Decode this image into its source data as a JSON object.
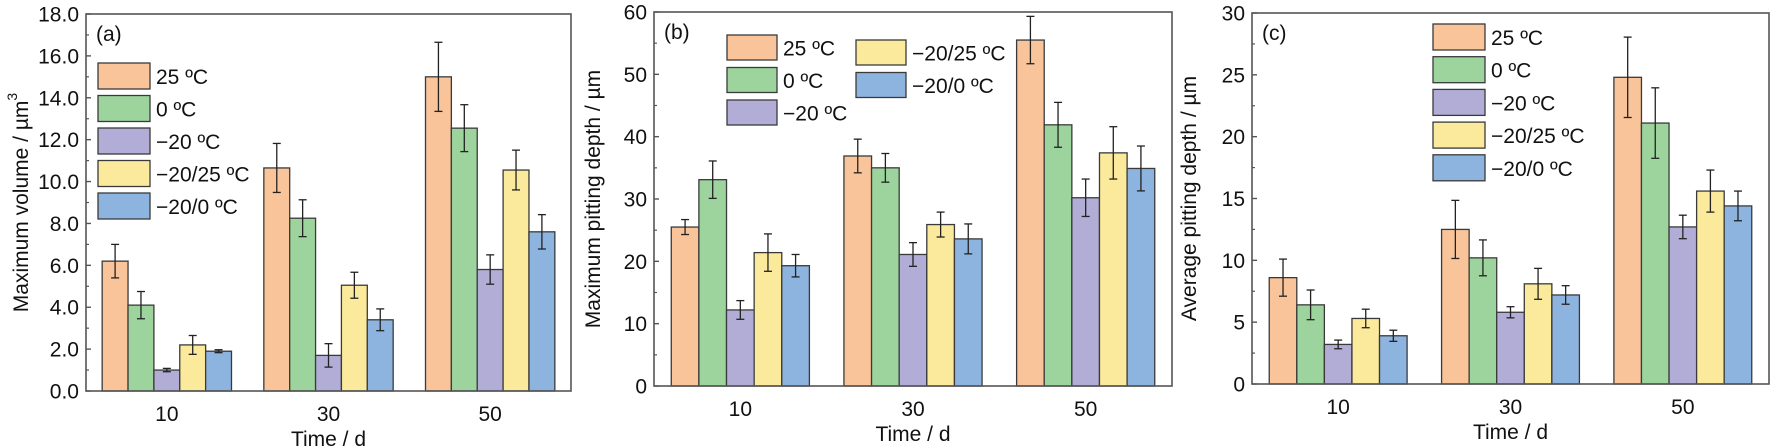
{
  "chart_data": [
    {
      "type": "bar",
      "panel_label": "(a)",
      "title": "",
      "xlabel": "Time / d",
      "ylabel": "Maximum volume / µm",
      "ylabel_superscript": "3",
      "categories": [
        "10",
        "30",
        "50"
      ],
      "ylim": [
        0,
        18
      ],
      "yticks": [
        0,
        2,
        4,
        6,
        8,
        10,
        12,
        14,
        16,
        18
      ],
      "ytick_labels": [
        "0.0",
        "2.0",
        "4.0",
        "6.0",
        "8.0",
        "10.0",
        "12.0",
        "14.0",
        "16.0",
        "18.0"
      ],
      "grid": false,
      "legend_placement": "top-left",
      "legend_columns": 1,
      "series": [
        {
          "name": "25 ºC",
          "color": "#F9C49A",
          "values": [
            6.2,
            10.65,
            15.0
          ],
          "errors": [
            0.8,
            1.17,
            1.65
          ]
        },
        {
          "name": "0 ºC",
          "color": "#9DD49E",
          "values": [
            4.1,
            8.25,
            12.55
          ],
          "errors": [
            0.65,
            0.88,
            1.12
          ]
        },
        {
          "name": "−20 ºC",
          "color": "#B2ADD6",
          "values": [
            1.0,
            1.7,
            5.8
          ],
          "errors": [
            0.08,
            0.56,
            0.7
          ]
        },
        {
          "name": "−20/25 ºC",
          "color": "#FCEA9C",
          "values": [
            2.2,
            5.05,
            10.55
          ],
          "errors": [
            0.45,
            0.62,
            0.95
          ]
        },
        {
          "name": "−20/0 ºC",
          "color": "#8DB3DF",
          "values": [
            1.9,
            3.4,
            7.6
          ],
          "errors": [
            0.07,
            0.52,
            0.82
          ]
        }
      ]
    },
    {
      "type": "bar",
      "panel_label": "(b)",
      "title": "",
      "xlabel": "Time / d",
      "ylabel": "Maximum pitting depth / µm",
      "ylabel_superscript": "",
      "categories": [
        "10",
        "30",
        "50"
      ],
      "ylim": [
        0,
        60
      ],
      "yticks": [
        0,
        10,
        20,
        30,
        40,
        50,
        60
      ],
      "ytick_labels": [
        "0",
        "10",
        "20",
        "30",
        "40",
        "50",
        "60"
      ],
      "grid": false,
      "legend_placement": "top-center",
      "legend_columns": 2,
      "series": [
        {
          "name": "25 ºC",
          "color": "#F9C49A",
          "values": [
            25.5,
            36.9,
            55.5
          ],
          "errors": [
            1.2,
            2.7,
            3.8
          ]
        },
        {
          "name": "0 ºC",
          "color": "#9DD49E",
          "values": [
            33.1,
            35.0,
            41.9
          ],
          "errors": [
            3.0,
            2.3,
            3.6
          ]
        },
        {
          "name": "−20 ºC",
          "color": "#B2ADD6",
          "values": [
            12.2,
            21.1,
            30.2
          ],
          "errors": [
            1.5,
            1.9,
            3.0
          ]
        },
        {
          "name": "−20/25 ºC",
          "color": "#FCEA9C",
          "values": [
            21.4,
            25.9,
            37.4
          ],
          "errors": [
            3.0,
            2.0,
            4.2
          ]
        },
        {
          "name": "−20/0 ºC",
          "color": "#8DB3DF",
          "values": [
            19.3,
            23.6,
            34.9
          ],
          "errors": [
            1.8,
            2.4,
            3.6
          ]
        }
      ]
    },
    {
      "type": "bar",
      "panel_label": "(c)",
      "title": "",
      "xlabel": "Time / d",
      "ylabel": "Average pitting depth / µm",
      "ylabel_superscript": "",
      "categories": [
        "10",
        "30",
        "50"
      ],
      "ylim": [
        0,
        30
      ],
      "yticks": [
        0,
        5,
        10,
        15,
        20,
        25,
        30
      ],
      "ytick_labels": [
        "0",
        "5",
        "10",
        "15",
        "20",
        "25",
        "30"
      ],
      "grid": false,
      "legend_placement": "top-center",
      "legend_columns": 1,
      "series": [
        {
          "name": "25 ºC",
          "color": "#F9C49A",
          "values": [
            8.6,
            12.5,
            24.8
          ],
          "errors": [
            1.5,
            2.35,
            3.25
          ]
        },
        {
          "name": "0 ºC",
          "color": "#9DD49E",
          "values": [
            6.4,
            10.2,
            21.1
          ],
          "errors": [
            1.2,
            1.45,
            2.85
          ]
        },
        {
          "name": "−20 ºC",
          "color": "#B2ADD6",
          "values": [
            3.2,
            5.8,
            12.7
          ],
          "errors": [
            0.35,
            0.45,
            0.95
          ]
        },
        {
          "name": "−20/25 ºC",
          "color": "#FCEA9C",
          "values": [
            5.3,
            8.1,
            15.6
          ],
          "errors": [
            0.75,
            1.25,
            1.7
          ]
        },
        {
          "name": "−20/0 ºC",
          "color": "#8DB3DF",
          "values": [
            3.9,
            7.2,
            14.4
          ],
          "errors": [
            0.45,
            0.75,
            1.2
          ]
        }
      ]
    }
  ]
}
